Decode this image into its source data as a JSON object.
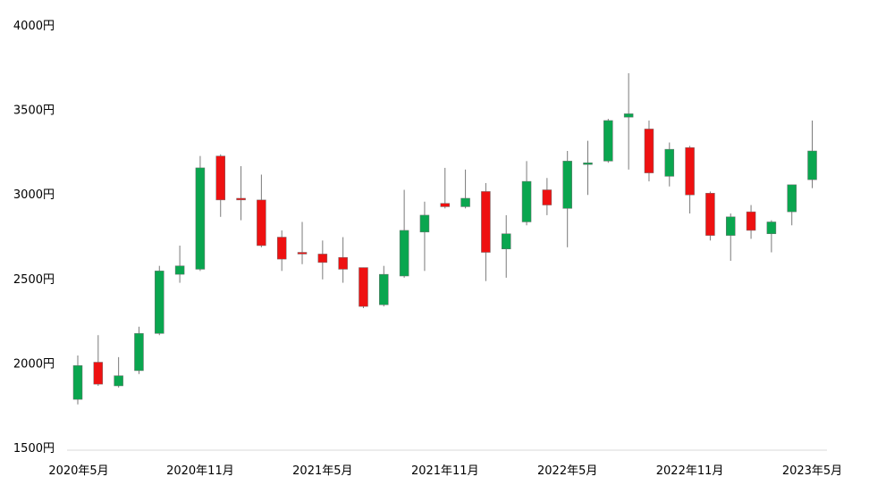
{
  "chart_data": {
    "type": "candlestick",
    "title": "",
    "xlabel": "",
    "ylabel": "",
    "ylim": [
      1500,
      4000
    ],
    "y_ticks": [
      1500,
      2000,
      2500,
      3000,
      3500,
      4000
    ],
    "y_tick_labels": [
      "1500円",
      "2000円",
      "2500円",
      "3000円",
      "3500円",
      "4000円"
    ],
    "x_tick_labels": [
      {
        "label": "2020年5月",
        "index": 0
      },
      {
        "label": "2020年11月",
        "index": 6
      },
      {
        "label": "2021年5月",
        "index": 12
      },
      {
        "label": "2021年11月",
        "index": 18
      },
      {
        "label": "2022年5月",
        "index": 24
      },
      {
        "label": "2022年11月",
        "index": 30
      },
      {
        "label": "2023年5月",
        "index": 36
      }
    ],
    "grid": false,
    "legend": "none",
    "colors": {
      "up": "#0aa64f",
      "down": "#ee1111",
      "wick": "#7a7a7a",
      "axis": "#d9d9d9"
    },
    "candles": [
      {
        "open": 1790,
        "high": 2050,
        "low": 1760,
        "close": 1990
      },
      {
        "open": 2010,
        "high": 2170,
        "low": 1870,
        "close": 1880
      },
      {
        "open": 1870,
        "high": 2040,
        "low": 1860,
        "close": 1930
      },
      {
        "open": 1960,
        "high": 2220,
        "low": 1940,
        "close": 2180
      },
      {
        "open": 2180,
        "high": 2580,
        "low": 2170,
        "close": 2550
      },
      {
        "open": 2530,
        "high": 2700,
        "low": 2480,
        "close": 2580
      },
      {
        "open": 2560,
        "high": 3230,
        "low": 2550,
        "close": 3160
      },
      {
        "open": 3230,
        "high": 3240,
        "low": 2870,
        "close": 2970
      },
      {
        "open": 2980,
        "high": 3170,
        "low": 2850,
        "close": 2970
      },
      {
        "open": 2970,
        "high": 3120,
        "low": 2690,
        "close": 2700
      },
      {
        "open": 2750,
        "high": 2790,
        "low": 2550,
        "close": 2620
      },
      {
        "open": 2660,
        "high": 2840,
        "low": 2590,
        "close": 2650
      },
      {
        "open": 2650,
        "high": 2730,
        "low": 2500,
        "close": 2600
      },
      {
        "open": 2630,
        "high": 2750,
        "low": 2480,
        "close": 2560
      },
      {
        "open": 2570,
        "high": 2570,
        "low": 2330,
        "close": 2340
      },
      {
        "open": 2350,
        "high": 2580,
        "low": 2340,
        "close": 2530
      },
      {
        "open": 2520,
        "high": 3030,
        "low": 2510,
        "close": 2790
      },
      {
        "open": 2780,
        "high": 2960,
        "low": 2550,
        "close": 2880
      },
      {
        "open": 2950,
        "high": 3160,
        "low": 2920,
        "close": 2930
      },
      {
        "open": 2930,
        "high": 3150,
        "low": 2920,
        "close": 2980
      },
      {
        "open": 3020,
        "high": 3070,
        "low": 2490,
        "close": 2660
      },
      {
        "open": 2680,
        "high": 2880,
        "low": 2510,
        "close": 2770
      },
      {
        "open": 2840,
        "high": 3200,
        "low": 2820,
        "close": 3080
      },
      {
        "open": 3030,
        "high": 3100,
        "low": 2880,
        "close": 2940
      },
      {
        "open": 2920,
        "high": 3260,
        "low": 2690,
        "close": 3200
      },
      {
        "open": 3180,
        "high": 3320,
        "low": 3000,
        "close": 3190
      },
      {
        "open": 3200,
        "high": 3450,
        "low": 3190,
        "close": 3440
      },
      {
        "open": 3460,
        "high": 3720,
        "low": 3150,
        "close": 3480
      },
      {
        "open": 3390,
        "high": 3440,
        "low": 3080,
        "close": 3130
      },
      {
        "open": 3110,
        "high": 3310,
        "low": 3050,
        "close": 3270
      },
      {
        "open": 3280,
        "high": 3290,
        "low": 2890,
        "close": 3000
      },
      {
        "open": 3010,
        "high": 3020,
        "low": 2730,
        "close": 2760
      },
      {
        "open": 2760,
        "high": 2890,
        "low": 2610,
        "close": 2870
      },
      {
        "open": 2900,
        "high": 2940,
        "low": 2740,
        "close": 2790
      },
      {
        "open": 2770,
        "high": 2850,
        "low": 2660,
        "close": 2840
      },
      {
        "open": 2900,
        "high": 3060,
        "low": 2820,
        "close": 3060
      },
      {
        "open": 3090,
        "high": 3440,
        "low": 3040,
        "close": 3260
      }
    ]
  }
}
